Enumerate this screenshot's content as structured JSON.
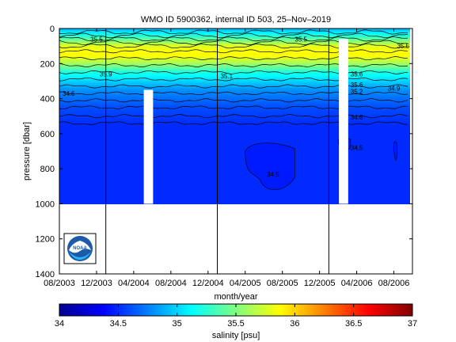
{
  "chart_data": [
    {
      "type": "heatmap",
      "title": "WMO ID 5900362, internal ID 503, 25–Nov–2019",
      "xlabel": "month/year",
      "ylabel": "pressure [dbar]",
      "xtick_labels": [
        "08/2003",
        "12/2003",
        "04/2004",
        "08/2004",
        "12/2004",
        "04/2005",
        "08/2005",
        "12/2005",
        "04/2006",
        "08/2006"
      ],
      "xlim": [
        "2003-08",
        "2006-10"
      ],
      "yticks": [
        0,
        200,
        400,
        600,
        800,
        1000,
        1200,
        1400
      ],
      "ylim": [
        0,
        1400
      ],
      "y_reversed": true,
      "grid": false,
      "year_markers": [
        "2004-01",
        "2005-01",
        "2006-01"
      ],
      "data_gaps": [
        {
          "start": "2004-05",
          "end": "2004-06",
          "max_pressure": 350
        },
        {
          "start": "2006-02",
          "end": "2006-03",
          "max_pressure": 60
        }
      ],
      "profile_max_pressure": 1000,
      "salinity_profile": [
        {
          "pressure": 0,
          "salinity": 34.9
        },
        {
          "pressure": 50,
          "salinity": 35.3
        },
        {
          "pressure": 100,
          "salinity": 35.8
        },
        {
          "pressure": 150,
          "salinity": 35.9
        },
        {
          "pressure": 200,
          "salinity": 35.6
        },
        {
          "pressure": 250,
          "salinity": 35.2
        },
        {
          "pressure": 300,
          "salinity": 35.0
        },
        {
          "pressure": 350,
          "salinity": 34.8
        },
        {
          "pressure": 400,
          "salinity": 34.7
        },
        {
          "pressure": 450,
          "salinity": 34.6
        },
        {
          "pressure": 500,
          "salinity": 34.55
        },
        {
          "pressure": 550,
          "salinity": 34.5
        },
        {
          "pressure": 1000,
          "salinity": 34.5
        }
      ],
      "contour_labels": [
        {
          "text": "35.5",
          "x": "2003-12",
          "pressure": 60
        },
        {
          "text": "35.5",
          "x": "2005-10",
          "pressure": 60
        },
        {
          "text": "35.5",
          "x": "2006-09",
          "pressure": 100
        },
        {
          "text": "35.9",
          "x": "2004-01",
          "pressure": 260
        },
        {
          "text": "35.1",
          "x": "2005-02",
          "pressure": 270
        },
        {
          "text": "35.6",
          "x": "2006-04",
          "pressure": 260
        },
        {
          "text": "35.6",
          "x": "2006-04",
          "pressure": 320
        },
        {
          "text": "34.9",
          "x": "2006-08",
          "pressure": 340
        },
        {
          "text": "35.2",
          "x": "2006-04",
          "pressure": 360
        },
        {
          "text": "34.6",
          "x": "2003-09",
          "pressure": 370
        },
        {
          "text": "34.6",
          "x": "2006-04",
          "pressure": 505
        },
        {
          "text": "34.5",
          "x": "2006-04",
          "pressure": 680
        },
        {
          "text": "34.5",
          "x": "2005-07",
          "pressure": 830
        }
      ],
      "low_salinity_patches": [
        {
          "start": "2005-04",
          "end": "2005-09",
          "p_top": 640,
          "p_bottom": 940,
          "salinity": 34.45
        },
        {
          "start": "2006-08",
          "end": "2006-08",
          "p_top": 640,
          "p_bottom": 760,
          "salinity": 34.45
        },
        {
          "start": "2006-02",
          "end": "2006-03",
          "p_top": 620,
          "p_bottom": 700,
          "salinity": 34.45
        }
      ]
    },
    {
      "type": "colorbar",
      "xlabel": "salinity [psu]",
      "tick_labels": [
        "34",
        "34.5",
        "35",
        "35.5",
        "36",
        "36.5",
        "37"
      ],
      "range": [
        34,
        37
      ],
      "colormap": "jet"
    }
  ],
  "logo": {
    "text": "NOAA"
  },
  "colors": {
    "axis": "#000000",
    "background": "#ffffff",
    "contour": "#000000"
  }
}
